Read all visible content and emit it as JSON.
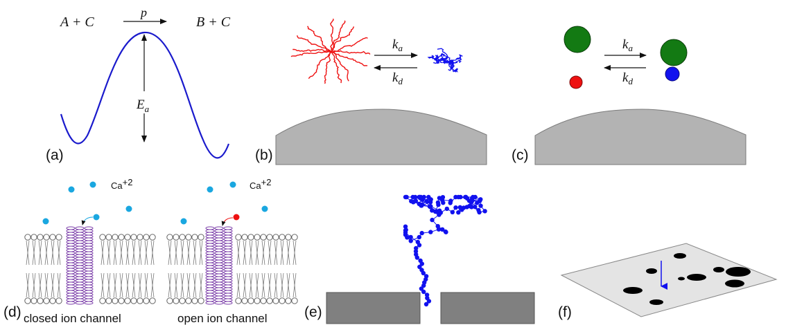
{
  "panels": {
    "a": {
      "label": "(a)",
      "reactants": "A + C",
      "products": "B + C",
      "arrow_label": "p",
      "energy_label": "E",
      "energy_sub": "a"
    },
    "b": {
      "label": "(b)",
      "forward_rate": "k",
      "forward_sub": "a",
      "backward_rate": "k",
      "backward_sub": "d"
    },
    "c": {
      "label": "(c)",
      "forward_rate": "k",
      "forward_sub": "a",
      "backward_rate": "k",
      "backward_sub": "d"
    },
    "d": {
      "label": "(d)",
      "ion_left": "Ca",
      "ion_right": "Ca",
      "ion_charge": "+2",
      "caption_closed": "closed ion channel",
      "caption_open": "open ion channel"
    },
    "e": {
      "label": "(e)"
    },
    "f": {
      "label": "(f)"
    }
  },
  "colors": {
    "curve_blue": "#1a1acc",
    "polymer_red": "#ee1111",
    "polymer_blue": "#1111ee",
    "ion_cyan": "#1aa7e0",
    "channel_purple": "#7a3da8",
    "surface_gray": "#b3b3b3",
    "block_gray": "#808080",
    "ball_green": "#137a13"
  }
}
